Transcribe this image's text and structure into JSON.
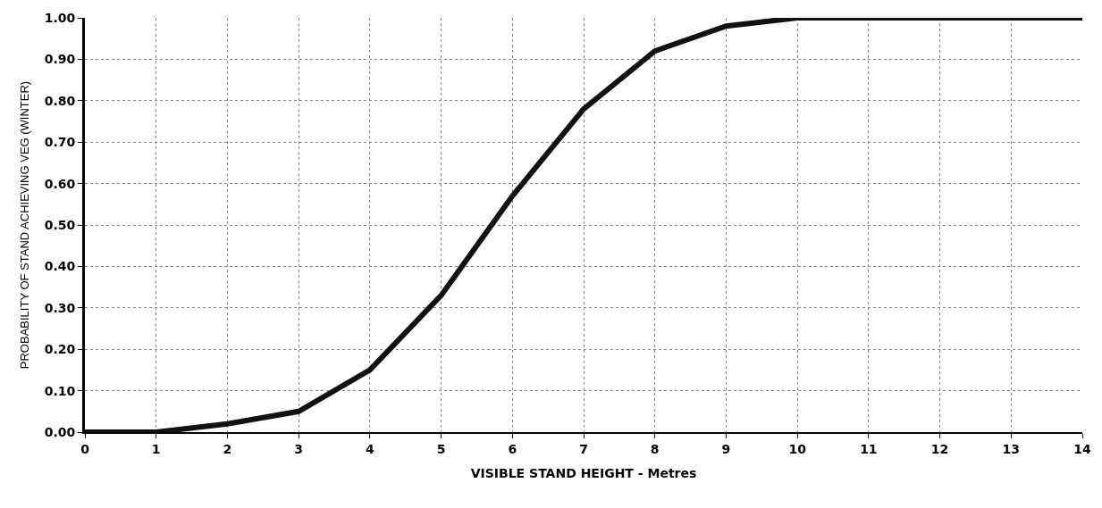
{
  "chart_data": {
    "type": "line",
    "xlabel": "VISIBLE STAND HEIGHT - Metres",
    "ylabel": "PROBABILITY OF STAND ACHIEVING VEG (WINTER)",
    "x": [
      0,
      1,
      2,
      3,
      4,
      5,
      6,
      7,
      8,
      9,
      10,
      11,
      12,
      13,
      14
    ],
    "series": [
      {
        "color": "#111111",
        "values": [
          0.0,
          0.0,
          0.02,
          0.05,
          0.15,
          0.33,
          0.57,
          0.78,
          0.92,
          0.98,
          1.0,
          1.0,
          1.0,
          1.0,
          1.0
        ]
      }
    ],
    "xlim": [
      0,
      14
    ],
    "xticks": [
      0,
      1,
      2,
      3,
      4,
      5,
      6,
      7,
      8,
      9,
      10,
      11,
      12,
      13,
      14
    ],
    "ylim": [
      0,
      1
    ],
    "yticks": [
      {
        "value": 0,
        "label": "0.00"
      },
      {
        "value": 0.1,
        "label": "0.10"
      },
      {
        "value": 0.2,
        "label": "0.20"
      },
      {
        "value": 0.3,
        "label": "0.30"
      },
      {
        "value": 0.4,
        "label": "0.40"
      },
      {
        "value": 0.5,
        "label": "0.50"
      },
      {
        "value": 0.6,
        "label": "0.60"
      },
      {
        "value": 0.7,
        "label": "0.70"
      },
      {
        "value": 0.8,
        "label": "0.80"
      },
      {
        "value": 0.9,
        "label": "0.90"
      },
      {
        "value": 1,
        "label": "1.00"
      }
    ],
    "grid": true,
    "marker": "none",
    "line_style": "solid"
  }
}
